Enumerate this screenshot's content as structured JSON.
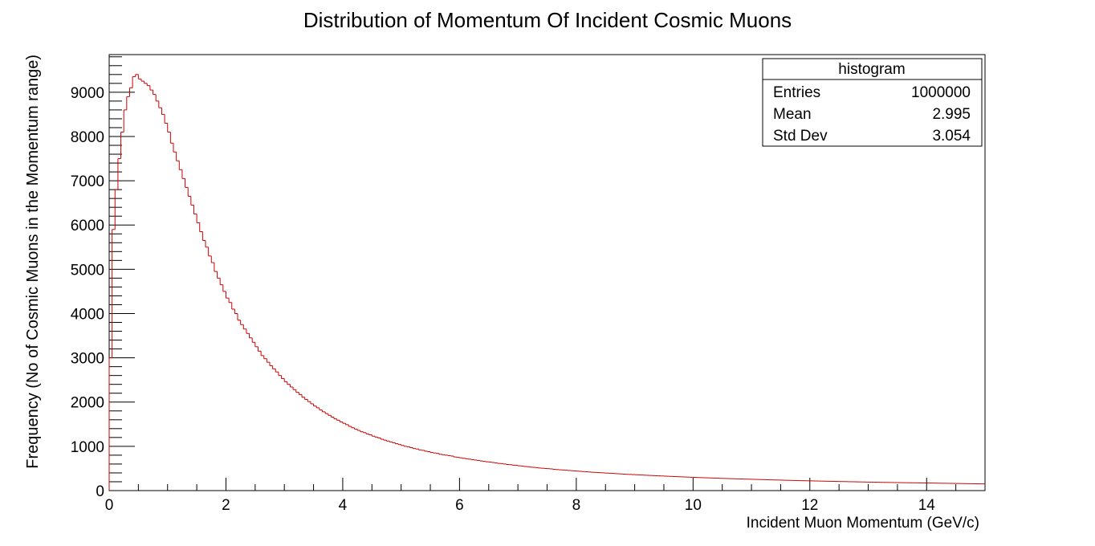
{
  "chart_data": {
    "type": "bar",
    "title": "Distribution of Momentum Of Incident Cosmic Muons",
    "xlabel": "Incident Muon Momentum (GeV/c)",
    "ylabel": "Frequency (No of Cosmic Muons in the Momentum range)",
    "xlim": [
      0,
      15
    ],
    "ylim": [
      0,
      9850
    ],
    "xticks": [
      0,
      2,
      4,
      6,
      8,
      10,
      12,
      14
    ],
    "yticks": [
      0,
      1000,
      2000,
      3000,
      4000,
      5000,
      6000,
      7000,
      8000,
      9000
    ],
    "grid": false,
    "line_color": "#cc0000",
    "bin_width": 0.05,
    "series": [
      {
        "values": [
          3000,
          5900,
          6800,
          7500,
          8100,
          8600,
          8900,
          9100,
          9350,
          9400,
          9300,
          9250,
          9200,
          9150,
          9050,
          8950,
          8800,
          8650,
          8500,
          8300,
          8100,
          7850,
          7650,
          7450,
          7250,
          7050,
          6850,
          6650,
          6450,
          6250,
          6050,
          5850,
          5650,
          5500,
          5300,
          5150,
          4950,
          4800,
          4650,
          4500,
          4350,
          4250,
          4100,
          4000,
          3850,
          3750,
          3650,
          3550,
          3450,
          3350,
          3250,
          3150,
          3050,
          2980,
          2900,
          2820,
          2750,
          2680,
          2600,
          2530,
          2460,
          2400,
          2340,
          2280,
          2220,
          2170,
          2110,
          2060,
          2010,
          1960,
          1910,
          1870,
          1820,
          1780,
          1740,
          1700,
          1660,
          1620,
          1590,
          1550,
          1520,
          1490,
          1450,
          1420,
          1390,
          1360,
          1330,
          1310,
          1280,
          1260,
          1230,
          1210,
          1190,
          1160,
          1140,
          1120,
          1100,
          1080,
          1060,
          1040,
          1020,
          1000,
          990,
          970,
          950,
          940,
          920,
          910,
          890,
          880,
          860,
          850,
          840,
          820,
          810,
          800,
          790,
          780,
          760,
          750,
          740,
          730,
          720,
          710,
          700,
          690,
          680,
          670,
          660,
          650,
          645,
          635,
          625,
          615,
          610,
          600,
          590,
          585,
          575,
          570,
          560,
          555,
          545,
          540,
          530,
          525,
          520,
          510,
          505,
          500,
          495,
          490,
          480,
          475,
          470,
          465,
          460,
          455,
          450,
          445,
          440,
          435,
          430,
          425,
          420,
          415,
          412,
          408,
          404,
          400,
          396,
          392,
          388,
          384,
          380,
          376,
          372,
          368,
          365,
          362,
          358,
          355,
          352,
          348,
          345,
          342,
          339,
          336,
          333,
          330,
          327,
          324,
          321,
          318,
          315,
          312,
          310,
          307,
          304,
          302,
          299,
          296,
          294,
          291,
          289,
          287,
          284,
          282,
          280,
          277,
          275,
          273,
          271,
          269,
          267,
          265,
          263,
          261,
          259,
          257,
          255,
          253,
          251,
          249,
          247,
          245,
          243,
          241,
          240,
          238,
          236,
          234,
          233,
          231,
          229,
          228,
          226,
          224,
          223,
          221,
          220,
          218,
          217,
          215,
          214,
          212,
          211,
          209,
          208,
          207,
          205,
          204,
          203,
          201,
          200,
          199,
          197,
          196,
          195,
          193,
          192,
          191,
          190,
          189,
          187,
          186,
          185,
          184,
          183,
          182,
          181,
          180,
          179,
          178,
          177,
          176,
          175,
          174,
          173,
          172,
          171,
          170,
          169,
          168,
          167,
          166,
          165,
          164,
          163,
          162,
          161,
          160,
          159,
          158,
          157,
          156,
          155,
          154,
          153,
          152,
          151
        ]
      }
    ]
  },
  "stats_box": {
    "title": "histogram",
    "rows": [
      {
        "label": "Entries",
        "value": "1000000"
      },
      {
        "label": "Mean",
        "value": "2.995"
      },
      {
        "label": "Std Dev",
        "value": "3.054"
      }
    ]
  }
}
